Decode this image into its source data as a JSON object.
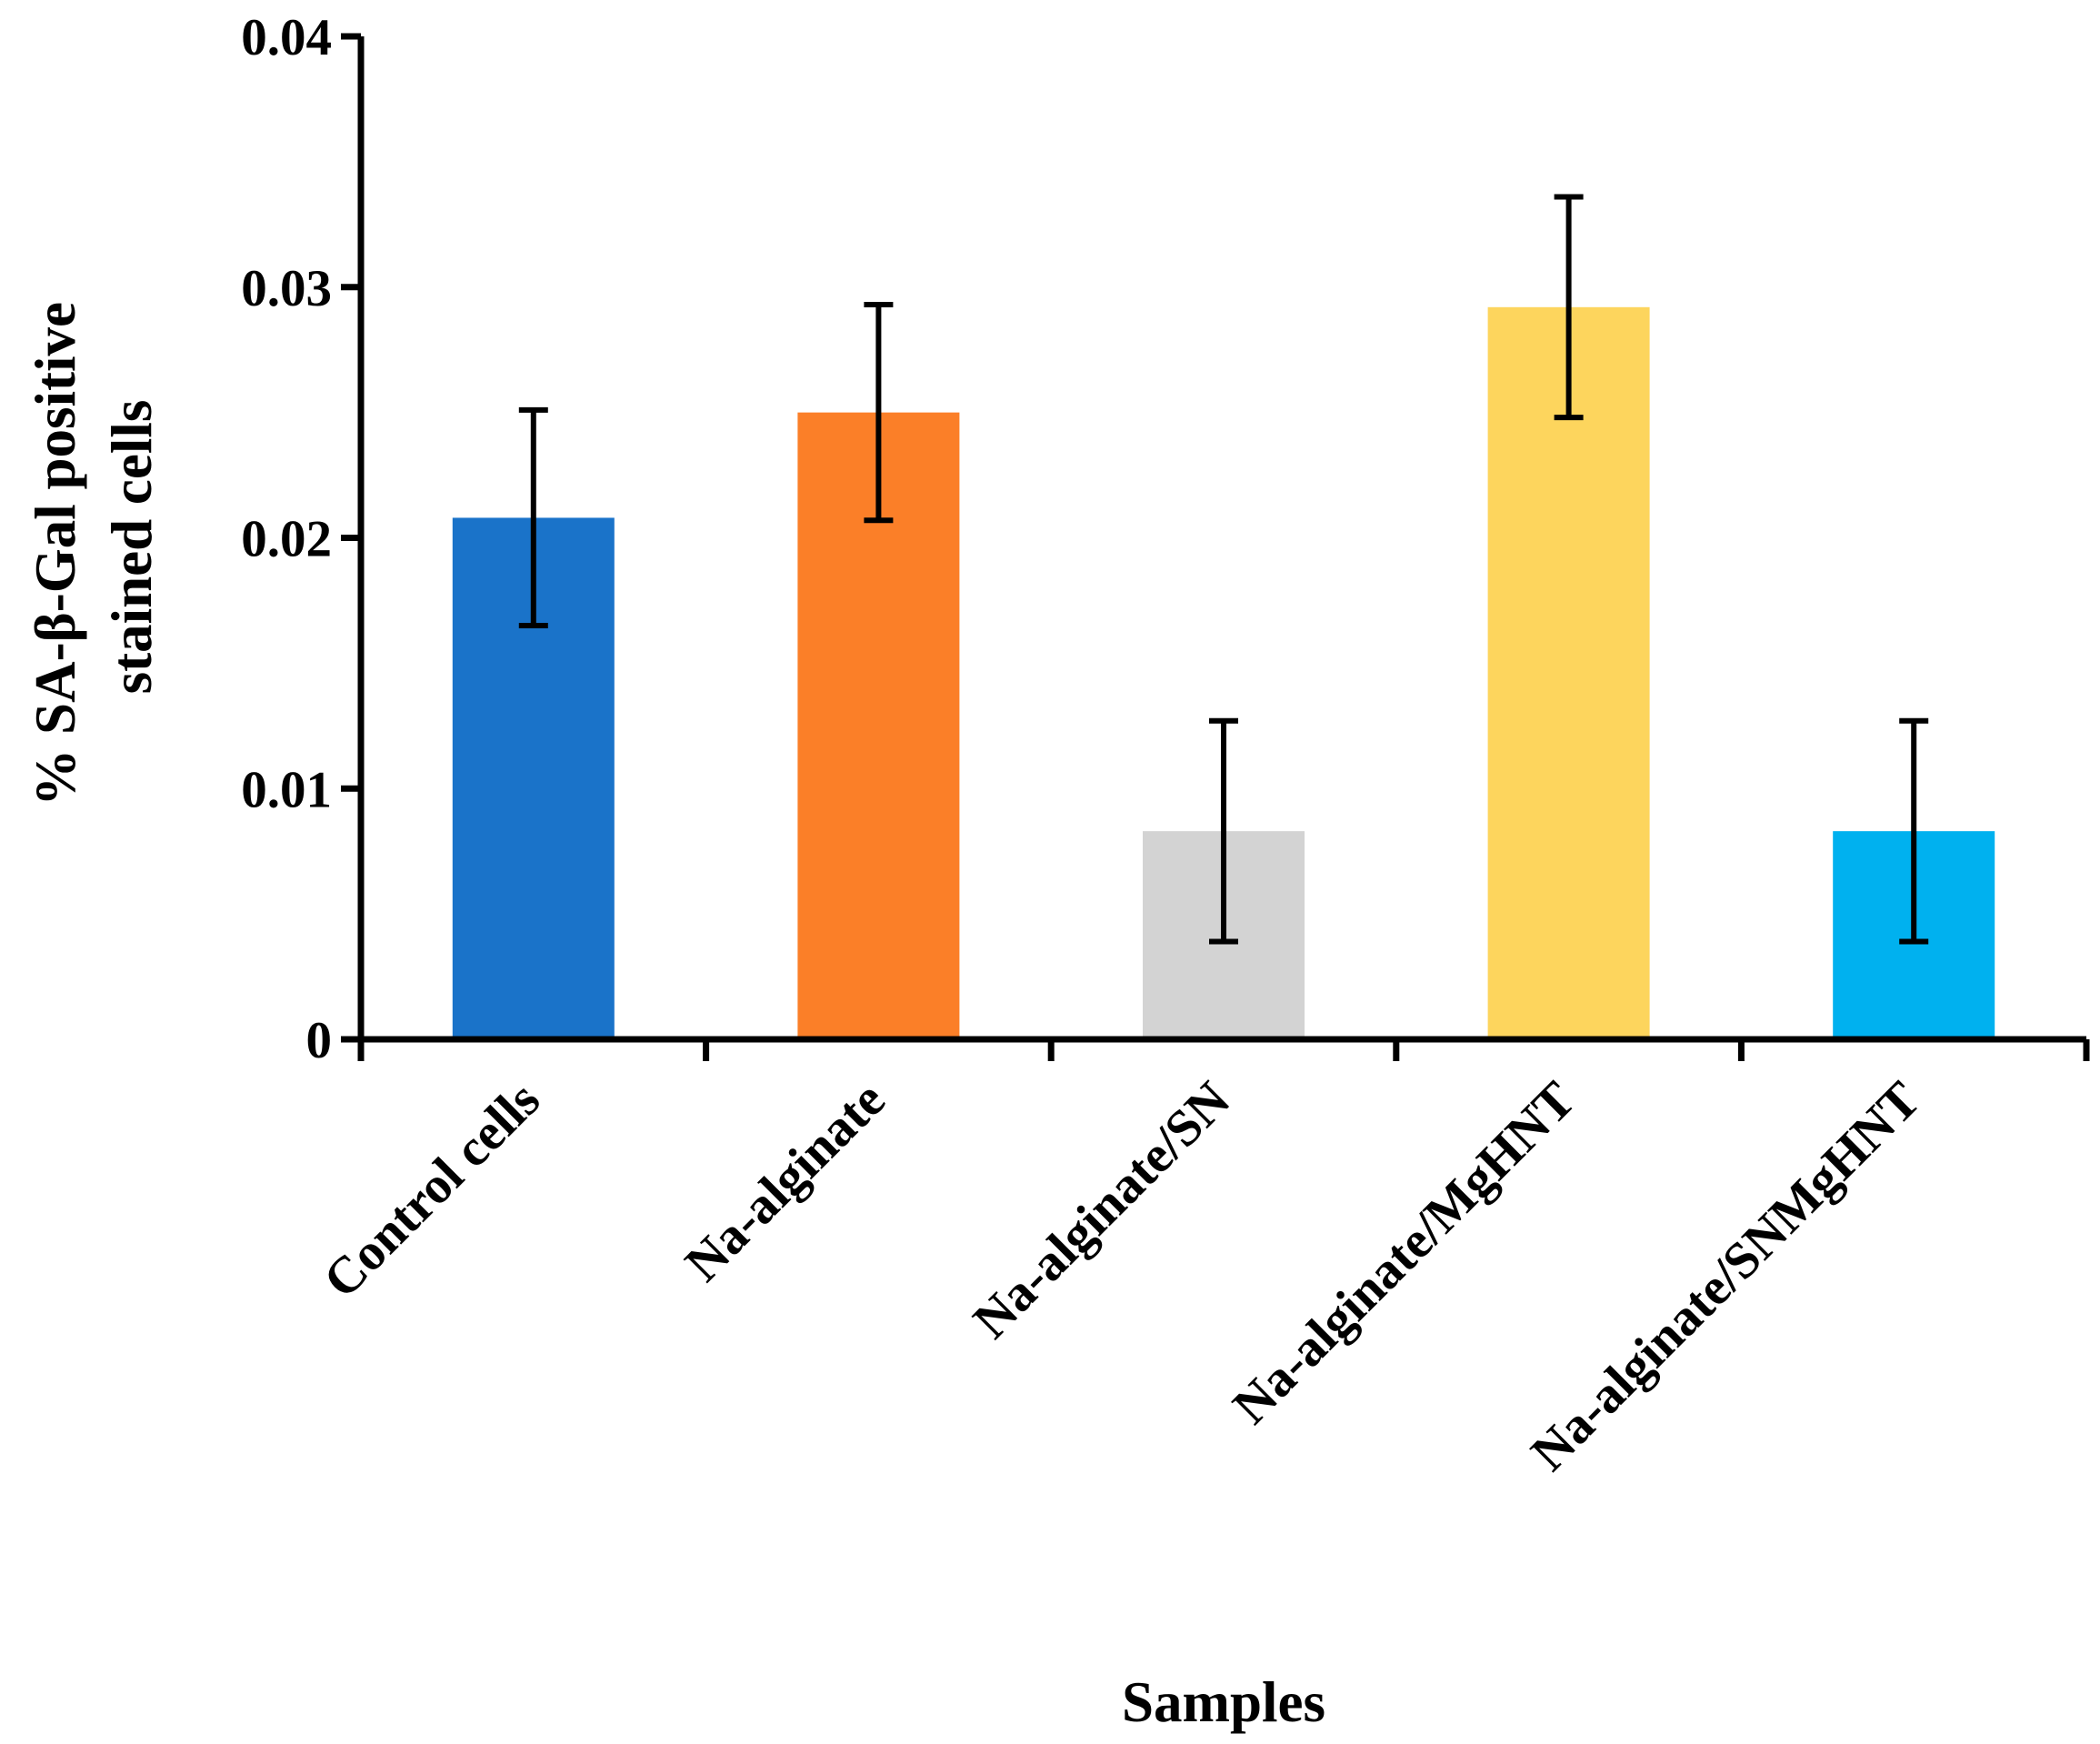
{
  "chart_data": {
    "type": "bar",
    "categories": [
      "Control cells",
      "Na-alginate",
      "Na-alginate/SN",
      "Na-alginate/MgHNT",
      "Na-alginate/SNMgHNT"
    ],
    "values": [
      0.0208,
      0.025,
      0.0083,
      0.0292,
      0.0083
    ],
    "errors": [
      0.0043,
      0.0043,
      0.0044,
      0.0044,
      0.0044
    ],
    "colors": [
      "#1a73c9",
      "#fb7f28",
      "#d3d3d3",
      "#fdd55d",
      "#00b1ef"
    ],
    "title": "",
    "xlabel": "Samples",
    "ylabel_lines": [
      "% SA-β-Gal positive",
      "stained cells"
    ],
    "ylim": [
      0,
      0.04
    ],
    "yticks": [
      0,
      0.01,
      0.02,
      0.03,
      0.04
    ],
    "ytick_labels": [
      "0",
      "0.01",
      "0.02",
      "0.03",
      "0.04"
    ],
    "grid": false,
    "legend": "none"
  }
}
